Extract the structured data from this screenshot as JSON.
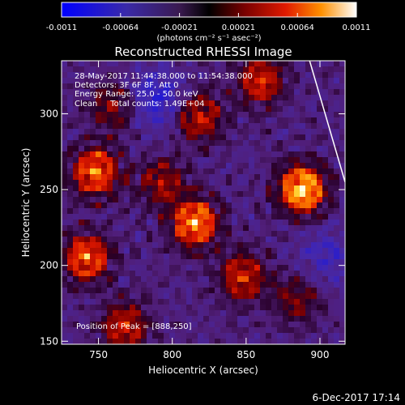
{
  "chart_data": {
    "type": "heatmap",
    "title": "Reconstructed RHESSI Image",
    "xlabel": "Heliocentric X (arcsec)",
    "ylabel": "Heliocentric Y (arcsec)",
    "xlim": [
      725,
      917
    ],
    "ylim": [
      148,
      335
    ],
    "x_ticks": [
      750,
      800,
      850,
      900
    ],
    "y_ticks": [
      150,
      200,
      250,
      300
    ],
    "colorbar": {
      "min": -0.0011,
      "max": 0.0011,
      "ticks": [
        "-0.0011",
        "-0.00064",
        "-0.00021",
        "0.00021",
        "0.00064",
        "0.0011"
      ],
      "unit_label": "(photons cm⁻² s⁻¹ asec⁻²)"
    },
    "annotations": [
      "28-May-2017 11:44:38.000 to 11:54:38.000",
      "Detectors: 3F 6F 8F, Att 0",
      "Energy Range: 25.0 - 50.0 keV",
      "Clean     Total counts: 1.49E+04",
      "Position of Peak = [888,250]"
    ],
    "peak": [
      888,
      250
    ],
    "sources": [
      {
        "x": 888,
        "y": 250,
        "amp": 1.0
      },
      {
        "x": 815,
        "y": 228,
        "amp": 0.85
      },
      {
        "x": 748,
        "y": 262,
        "amp": 0.8
      },
      {
        "x": 742,
        "y": 205,
        "amp": 0.75
      },
      {
        "x": 818,
        "y": 298,
        "amp": 0.6
      },
      {
        "x": 848,
        "y": 192,
        "amp": 0.6
      },
      {
        "x": 860,
        "y": 322,
        "amp": 0.6
      },
      {
        "x": 768,
        "y": 160,
        "amp": 0.55
      },
      {
        "x": 793,
        "y": 255,
        "amp": 0.45
      },
      {
        "x": 885,
        "y": 178,
        "amp": 0.4
      },
      {
        "x": 760,
        "y": 305,
        "amp": 0.4
      }
    ],
    "negative_regions": [
      {
        "x": 790,
        "y": 310,
        "amp": 0.5
      },
      {
        "x": 905,
        "y": 205,
        "amp": 0.35
      }
    ],
    "limb_line": [
      [
        893,
        335
      ],
      [
        917,
        255
      ]
    ]
  },
  "footer": {
    "timestamp": "6-Dec-2017 17:14"
  }
}
